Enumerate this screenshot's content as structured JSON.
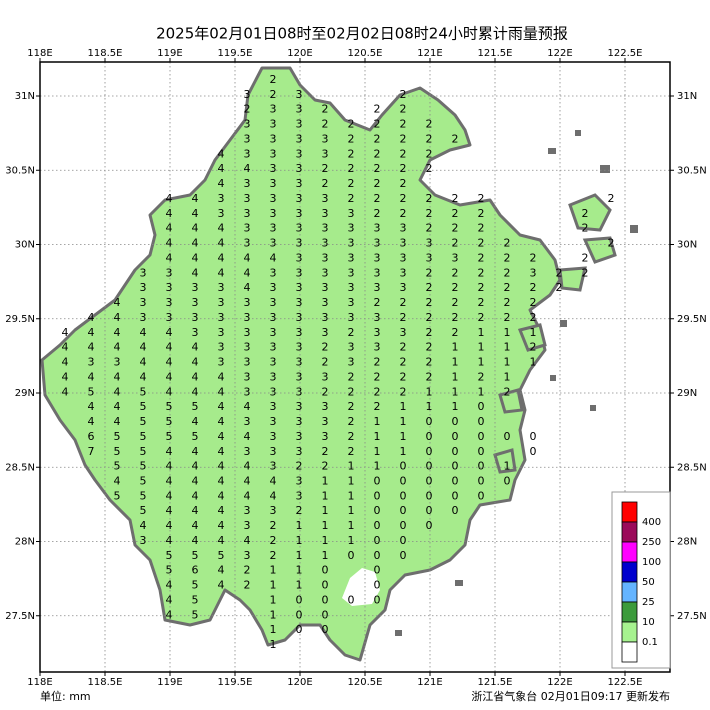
{
  "title": "2025年02月01日08时至02月02日08时24小时累计雨量预报",
  "unit": "单位: mm",
  "footer": "浙江省气象台 02月01日09:17 更新发布",
  "axes": {
    "lon_ticks": [
      {
        "value": 118,
        "label": "118E"
      },
      {
        "value": 118.5,
        "label": "118.5E"
      },
      {
        "value": 119,
        "label": "119E"
      },
      {
        "value": 119.5,
        "label": "119.5E"
      },
      {
        "value": 120,
        "label": "120E"
      },
      {
        "value": 120.5,
        "label": "120.5E"
      },
      {
        "value": 121,
        "label": "121E"
      },
      {
        "value": 121.5,
        "label": "121.5E"
      },
      {
        "value": 122,
        "label": "122E"
      },
      {
        "value": 122.5,
        "label": "122.5E"
      }
    ],
    "lat_ticks": [
      {
        "value": 31,
        "label": "31N"
      },
      {
        "value": 30.5,
        "label": "30.5N"
      },
      {
        "value": 30,
        "label": "30N"
      },
      {
        "value": 29.5,
        "label": "29.5N"
      },
      {
        "value": 29,
        "label": "29N"
      },
      {
        "value": 28.5,
        "label": "28.5N"
      },
      {
        "value": 28,
        "label": "28N"
      },
      {
        "value": 27.5,
        "label": "27.5N"
      }
    ]
  },
  "legend": {
    "colors": [
      "#ff0000",
      "#9b0a5a",
      "#ff00ff",
      "#0000cd",
      "#64b4ff",
      "#3c9b3c",
      "#a6f28f",
      "#ffffff"
    ],
    "labels": [
      400,
      250,
      100,
      50,
      25,
      10,
      0.1
    ]
  },
  "grid": {
    "rows": [
      [
        null,
        null,
        null,
        null,
        null,
        null,
        null,
        null,
        2,
        null,
        null,
        null,
        null,
        null,
        null,
        null,
        null,
        null,
        null,
        null,
        null,
        null
      ],
      [
        null,
        null,
        null,
        null,
        null,
        null,
        null,
        3,
        2,
        3,
        null,
        null,
        null,
        2,
        null,
        null,
        null,
        null,
        null,
        null,
        null,
        null
      ],
      [
        null,
        null,
        null,
        null,
        null,
        null,
        null,
        2,
        3,
        3,
        2,
        null,
        2,
        2,
        null,
        null,
        null,
        null,
        null,
        null,
        null,
        null
      ],
      [
        null,
        null,
        null,
        null,
        null,
        null,
        null,
        3,
        3,
        3,
        2,
        2,
        2,
        2,
        2,
        null,
        null,
        null,
        null,
        null,
        null,
        null
      ],
      [
        null,
        null,
        null,
        null,
        null,
        null,
        null,
        3,
        3,
        3,
        3,
        2,
        2,
        2,
        2,
        2,
        null,
        null,
        null,
        null,
        null,
        null
      ],
      [
        null,
        null,
        null,
        null,
        null,
        null,
        4,
        3,
        3,
        3,
        3,
        2,
        2,
        2,
        2,
        null,
        null,
        null,
        null,
        null,
        null,
        null
      ],
      [
        null,
        null,
        null,
        null,
        null,
        null,
        4,
        4,
        3,
        3,
        2,
        2,
        2,
        2,
        2,
        null,
        null,
        null,
        null,
        null,
        null,
        null
      ],
      [
        null,
        null,
        null,
        null,
        null,
        null,
        4,
        3,
        3,
        3,
        2,
        2,
        2,
        2,
        null,
        null,
        null,
        null,
        null,
        null,
        null,
        null
      ],
      [
        null,
        null,
        null,
        null,
        4,
        4,
        3,
        3,
        3,
        3,
        3,
        2,
        2,
        2,
        2,
        2,
        2,
        null,
        null,
        null,
        null,
        2
      ],
      [
        null,
        null,
        null,
        null,
        4,
        4,
        3,
        3,
        3,
        3,
        3,
        3,
        2,
        2,
        2,
        2,
        2,
        null,
        null,
        null,
        2,
        null
      ],
      [
        null,
        null,
        null,
        null,
        4,
        4,
        4,
        3,
        3,
        3,
        3,
        3,
        3,
        3,
        2,
        2,
        2,
        null,
        null,
        null,
        2,
        null
      ],
      [
        null,
        null,
        null,
        null,
        4,
        4,
        4,
        3,
        3,
        3,
        3,
        3,
        3,
        3,
        3,
        2,
        2,
        2,
        null,
        null,
        null,
        2
      ],
      [
        null,
        null,
        null,
        null,
        4,
        4,
        4,
        4,
        4,
        3,
        3,
        3,
        3,
        3,
        3,
        3,
        2,
        2,
        2,
        null,
        2,
        null
      ],
      [
        null,
        null,
        null,
        3,
        3,
        4,
        4,
        4,
        3,
        3,
        3,
        3,
        3,
        3,
        2,
        2,
        2,
        2,
        3,
        2,
        2,
        null
      ],
      [
        null,
        null,
        null,
        3,
        3,
        3,
        3,
        4,
        3,
        3,
        3,
        3,
        3,
        3,
        2,
        2,
        2,
        2,
        2,
        2,
        null,
        null
      ],
      [
        null,
        null,
        4,
        3,
        3,
        3,
        3,
        3,
        3,
        3,
        3,
        3,
        2,
        2,
        2,
        2,
        2,
        2,
        2,
        null,
        null,
        null
      ],
      [
        null,
        4,
        4,
        3,
        3,
        3,
        3,
        3,
        3,
        3,
        3,
        3,
        3,
        2,
        2,
        2,
        2,
        2,
        2,
        null,
        null,
        null
      ],
      [
        4,
        4,
        4,
        4,
        4,
        3,
        3,
        3,
        3,
        3,
        3,
        2,
        3,
        3,
        2,
        2,
        1,
        1,
        1,
        null,
        null,
        null
      ],
      [
        4,
        4,
        4,
        4,
        4,
        4,
        3,
        3,
        3,
        3,
        2,
        3,
        3,
        2,
        2,
        1,
        1,
        1,
        2,
        null,
        null,
        null
      ],
      [
        4,
        3,
        3,
        4,
        4,
        4,
        3,
        3,
        3,
        3,
        2,
        3,
        2,
        2,
        2,
        1,
        1,
        1,
        1,
        null,
        null,
        null
      ],
      [
        4,
        4,
        4,
        4,
        4,
        4,
        4,
        3,
        3,
        3,
        3,
        2,
        2,
        2,
        2,
        1,
        2,
        1,
        null,
        null,
        null,
        null
      ],
      [
        4,
        5,
        4,
        5,
        4,
        4,
        4,
        3,
        3,
        3,
        2,
        2,
        2,
        2,
        1,
        1,
        1,
        2,
        null,
        null,
        null,
        null
      ],
      [
        null,
        4,
        4,
        5,
        5,
        5,
        4,
        4,
        3,
        3,
        3,
        2,
        2,
        1,
        1,
        1,
        0,
        null,
        null,
        null,
        null,
        null
      ],
      [
        null,
        4,
        4,
        5,
        5,
        4,
        4,
        3,
        3,
        3,
        3,
        2,
        1,
        1,
        0,
        0,
        0,
        null,
        null,
        null,
        null,
        null
      ],
      [
        null,
        6,
        5,
        5,
        5,
        5,
        4,
        4,
        3,
        3,
        3,
        2,
        1,
        1,
        0,
        0,
        0,
        0,
        0,
        null,
        null,
        null
      ],
      [
        null,
        7,
        5,
        5,
        4,
        4,
        4,
        3,
        3,
        3,
        2,
        2,
        1,
        1,
        0,
        0,
        0,
        null,
        0,
        null,
        null,
        null
      ],
      [
        null,
        null,
        5,
        5,
        4,
        4,
        4,
        4,
        3,
        2,
        2,
        1,
        1,
        0,
        0,
        0,
        0,
        1,
        null,
        null,
        null,
        null
      ],
      [
        null,
        null,
        4,
        5,
        4,
        4,
        4,
        4,
        4,
        3,
        1,
        1,
        0,
        0,
        0,
        0,
        0,
        0,
        null,
        null,
        null,
        null
      ],
      [
        null,
        null,
        5,
        5,
        4,
        4,
        4,
        4,
        4,
        3,
        1,
        1,
        0,
        0,
        0,
        0,
        0,
        null,
        null,
        null,
        null,
        null
      ],
      [
        null,
        null,
        null,
        5,
        4,
        4,
        4,
        3,
        3,
        2,
        1,
        1,
        0,
        0,
        0,
        0,
        null,
        null,
        null,
        null,
        null,
        null
      ],
      [
        null,
        null,
        null,
        4,
        4,
        4,
        4,
        3,
        2,
        1,
        1,
        1,
        0,
        0,
        0,
        null,
        null,
        null,
        null,
        null,
        null,
        null
      ],
      [
        null,
        null,
        null,
        3,
        4,
        4,
        4,
        4,
        2,
        1,
        1,
        1,
        0,
        0,
        null,
        null,
        null,
        null,
        null,
        null,
        null,
        null
      ],
      [
        null,
        null,
        null,
        null,
        5,
        5,
        5,
        3,
        2,
        1,
        1,
        0,
        0,
        0,
        null,
        null,
        null,
        null,
        null,
        null,
        null,
        null
      ],
      [
        null,
        null,
        null,
        null,
        5,
        6,
        4,
        2,
        1,
        1,
        0,
        null,
        0,
        null,
        null,
        null,
        null,
        null,
        null,
        null,
        null,
        null
      ],
      [
        null,
        null,
        null,
        null,
        4,
        5,
        4,
        2,
        1,
        1,
        0,
        null,
        0,
        null,
        null,
        null,
        null,
        null,
        null,
        null,
        null,
        null
      ],
      [
        null,
        null,
        null,
        null,
        4,
        5,
        null,
        null,
        1,
        0,
        0,
        0,
        0,
        null,
        null,
        null,
        null,
        null,
        null,
        null,
        null,
        null
      ],
      [
        null,
        null,
        null,
        null,
        4,
        5,
        null,
        null,
        1,
        0,
        0,
        null,
        null,
        null,
        null,
        null,
        null,
        null,
        null,
        null,
        null,
        null
      ],
      [
        null,
        null,
        null,
        null,
        null,
        null,
        null,
        null,
        1,
        0,
        0,
        null,
        null,
        null,
        null,
        null,
        null,
        null,
        null,
        null,
        null,
        null
      ],
      [
        null,
        null,
        null,
        null,
        null,
        null,
        null,
        null,
        1,
        null,
        null,
        null,
        null,
        null,
        null,
        null,
        null,
        null,
        null,
        null,
        null,
        null
      ]
    ]
  }
}
